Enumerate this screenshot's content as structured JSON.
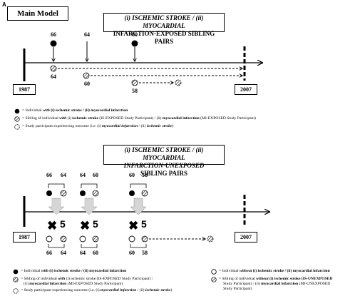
{
  "panel_letter": "A",
  "main_model_label": "Main Model",
  "top_title": {
    "line1": "(i) ISCHEMIC STROKE / (ii) MYOCARDIAL",
    "line2": "INFARCTION-EXPOSED SIBLING PAIRS"
  },
  "top_timeline": {
    "start_year": "1987",
    "end_year": "2007",
    "case_labels": [
      "66",
      "64",
      "60"
    ],
    "sibling_labels": [
      "64",
      "60",
      "58"
    ]
  },
  "top_legend": {
    "item1": {
      "text": "= Individual ",
      "with": "with",
      "rest_bold": " (i) ischemic stroke / (ii) myocardial infarction"
    },
    "item2": {
      "pre": "= Sibling of individual ",
      "with": "with",
      "mid": " (i) ",
      "b1": "ischemic stroke",
      "mid2": " (IS-EXPOSED Study Participant) / (ii) ",
      "b2": "myocardial infarction",
      "post": " (MI-EXPOSED Study Participant)"
    },
    "item3": {
      "pre": "= Study participant experiencing outcome (i.e. (i) ",
      "o1": "myocardial infarction",
      "mid": " / (ii) ",
      "o2": "ischemic stroke",
      "post": ")"
    }
  },
  "bottom_title": {
    "line1": "(i) ISCHEMIC STROKE / (ii) MYOCARDIAL",
    "line2a": "INFARCTION-UNEXPOSED",
    "line2b": " SIBLING PAIRS"
  },
  "bottom_timeline": {
    "start_year": "1987",
    "end_year": "2007",
    "pair_top_labels": [
      [
        "66",
        "64"
      ],
      [
        "64",
        "60"
      ],
      [
        "60",
        "58"
      ]
    ],
    "pair_bottom_labels": [
      [
        "66",
        "64"
      ],
      [
        "64",
        "60"
      ],
      [
        "60",
        "58"
      ]
    ],
    "match_count": [
      "5",
      "5",
      "5"
    ]
  },
  "bottom_legend": {
    "left1": {
      "pre": "= Individual ",
      "with": "with",
      "rest": " (i) ischemic stroke / (ii) myocardial infarction"
    },
    "left2a": {
      "pre": "= Sibling of individual ",
      "with": "with",
      "rest": " (i) ischemic stroke (IS-EXPOSED Study Participant) /"
    },
    "left2b": {
      "pre": "(ii) ",
      "b": "myocardial infarction",
      "post": " (MI-EXPOSED Study Participant)"
    },
    "left3": {
      "pre": "= Study participant experiencing outcome (i.e. (i) ",
      "o1": "myocardial infarction",
      "mid": " / (ii) ",
      "o2": "ischemic stroke",
      "post": ")"
    },
    "right1": {
      "pre": "= Individual ",
      "without": "without",
      "rest": " (i) ischemic stroke / (ii) myocardial infarction"
    },
    "right2a": {
      "pre": "= Sibling of individual ",
      "without": "without",
      "rest": " (i) ischemic stroke (IS-UNEXPOSED"
    },
    "right2b": {
      "pre": "Study Participant) / (ii) ",
      "b": "myocardial infarction",
      "post": " (MI-UNEXPOSED"
    },
    "right2c": {
      "text": "Study Participant)"
    }
  }
}
